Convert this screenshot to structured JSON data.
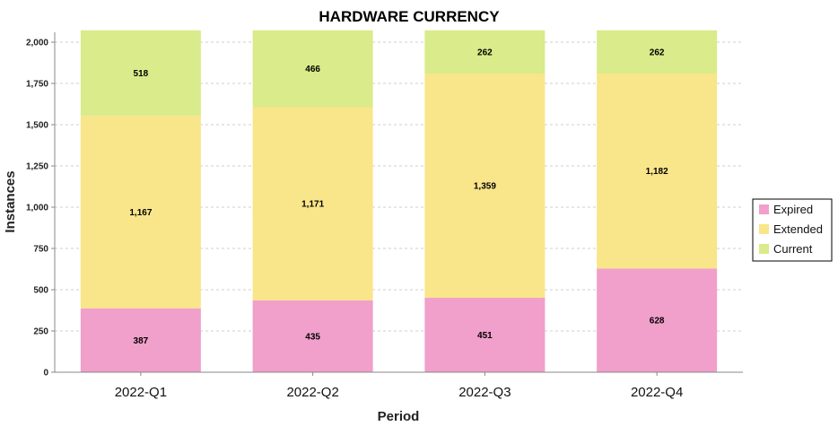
{
  "chart_data": {
    "type": "bar",
    "stacked": true,
    "title": "HARDWARE CURRENCY",
    "xlabel": "Period",
    "ylabel": "Instances",
    "categories": [
      "2022-Q1",
      "2022-Q2",
      "2022-Q3",
      "2022-Q4"
    ],
    "series": [
      {
        "name": "Expired",
        "color": "#f19fcb",
        "values": [
          387,
          435,
          451,
          628
        ],
        "labels": [
          "387",
          "435",
          "451",
          "628"
        ]
      },
      {
        "name": "Extended",
        "color": "#f9e58a",
        "values": [
          1167,
          1171,
          1359,
          1182
        ],
        "labels": [
          "1,167",
          "1,171",
          "1,359",
          "1,182"
        ]
      },
      {
        "name": "Current",
        "color": "#d9eb8a",
        "values": [
          518,
          466,
          262,
          262
        ],
        "labels": [
          "518",
          "466",
          "262",
          "262"
        ]
      }
    ],
    "ylim": [
      0,
      2060
    ],
    "yticks": [
      0,
      250,
      500,
      750,
      1000,
      1250,
      1500,
      1750,
      2000
    ],
    "ytick_labels": [
      "0",
      "250",
      "500",
      "750",
      "1,000",
      "1,250",
      "1,500",
      "1,750",
      "2,000"
    ],
    "grid": true,
    "legend_position": "right"
  }
}
